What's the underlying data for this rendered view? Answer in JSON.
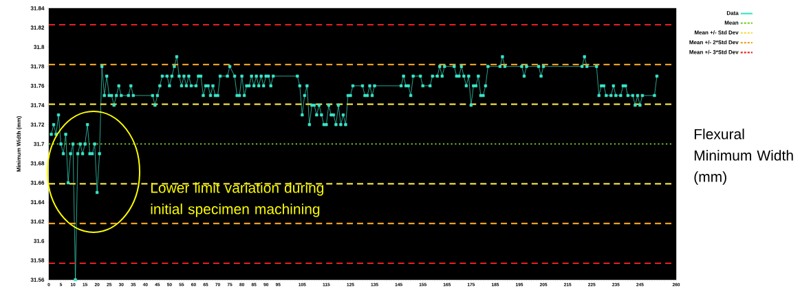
{
  "chart_data": {
    "type": "line",
    "ylabel": "Minimum Width (mm)",
    "annotations": [
      "Lower limit variation during initial specimen machining",
      "Flexural Minimum Width (mm)"
    ],
    "xlim": [
      0,
      260
    ],
    "xticks": [
      0,
      5,
      10,
      15,
      20,
      25,
      30,
      35,
      40,
      45,
      50,
      55,
      60,
      65,
      70,
      75,
      80,
      85,
      90,
      95,
      {
        "value": 100,
        "label": null
      },
      105,
      {
        "value": 110,
        "label": null
      },
      115,
      {
        "value": 120,
        "label": null
      },
      125,
      {
        "value": 130,
        "label": null
      },
      135,
      {
        "value": 140,
        "label": null
      },
      145,
      {
        "value": 150,
        "label": null
      },
      155,
      {
        "value": 160,
        "label": null
      },
      165,
      {
        "value": 170,
        "label": null
      },
      175,
      {
        "value": 180,
        "label": null
      },
      185,
      {
        "value": 190,
        "label": null
      },
      195,
      {
        "value": 200,
        "label": null
      },
      205,
      {
        "value": 210,
        "label": null
      },
      215,
      {
        "value": 220,
        "label": null
      },
      225,
      {
        "value": 230,
        "label": null
      },
      235,
      {
        "value": 240,
        "label": null
      },
      245,
      {
        "value": 250,
        "label": null
      },
      {
        "value": 255,
        "label": null
      },
      260
    ],
    "ylim": [
      31.56,
      31.84
    ],
    "yticks": [
      31.56,
      31.58,
      31.6,
      31.62,
      31.64,
      31.66,
      31.68,
      31.7,
      31.72,
      31.74,
      31.76,
      31.78,
      31.8,
      31.82,
      31.84
    ],
    "legend": "top right",
    "grid": false,
    "series": [
      {
        "name": "Data",
        "color": "#38e6c8",
        "marker": "square",
        "line_style": "solid",
        "x": [
          1,
          2,
          3,
          4,
          5,
          6,
          7,
          8,
          9,
          10,
          11,
          12,
          13,
          14,
          15,
          16,
          17,
          18,
          19,
          20,
          21,
          22,
          23,
          24,
          25,
          26,
          27,
          28,
          29,
          30,
          33,
          34,
          35,
          43,
          44,
          45,
          46,
          47,
          49,
          50,
          51,
          52,
          53,
          54,
          55,
          56,
          57,
          58,
          59,
          61,
          62,
          63,
          64,
          65,
          66,
          67,
          68,
          69,
          70,
          71,
          74,
          75,
          77,
          78,
          79,
          80,
          81,
          82,
          83,
          84,
          85,
          86,
          87,
          88,
          89,
          90,
          91,
          92,
          93,
          103,
          104,
          105,
          106,
          107,
          108,
          109,
          110,
          111,
          112,
          113,
          114,
          115,
          116,
          117,
          118,
          119,
          120,
          121,
          122,
          123,
          124,
          125,
          126,
          130,
          131,
          132,
          133,
          134,
          135,
          146,
          147,
          148,
          149,
          150,
          151,
          154,
          155,
          158,
          159,
          161,
          162,
          163,
          164,
          168,
          169,
          170,
          171,
          172,
          173,
          174,
          175,
          176,
          177,
          178,
          179,
          180,
          181,
          182,
          187,
          188,
          189,
          196,
          197,
          198,
          203,
          204,
          205,
          221,
          222,
          223,
          227,
          228,
          229,
          230,
          231,
          233,
          234,
          235,
          237,
          238,
          239,
          240,
          242,
          243,
          244,
          245,
          246,
          251,
          252
        ],
        "values": [
          31.71,
          31.72,
          31.71,
          31.73,
          31.7,
          31.69,
          31.71,
          31.66,
          31.69,
          31.7,
          31.56,
          31.69,
          31.7,
          31.69,
          31.7,
          31.72,
          31.69,
          31.69,
          31.7,
          31.65,
          31.69,
          31.78,
          31.75,
          31.77,
          31.75,
          31.75,
          31.74,
          31.75,
          31.76,
          31.75,
          31.75,
          31.76,
          31.75,
          31.75,
          31.74,
          31.75,
          31.76,
          31.77,
          31.77,
          31.76,
          31.77,
          31.78,
          31.79,
          31.77,
          31.76,
          31.77,
          31.76,
          31.77,
          31.76,
          31.76,
          31.77,
          31.77,
          31.75,
          31.76,
          31.76,
          31.75,
          31.76,
          31.75,
          31.75,
          31.77,
          31.77,
          31.78,
          31.77,
          31.75,
          31.75,
          31.77,
          31.75,
          31.76,
          31.76,
          31.77,
          31.76,
          31.77,
          31.76,
          31.77,
          31.76,
          31.77,
          31.77,
          31.76,
          31.77,
          31.77,
          31.76,
          31.73,
          31.75,
          31.76,
          31.72,
          31.74,
          31.74,
          31.73,
          31.74,
          31.73,
          31.72,
          31.72,
          31.74,
          31.73,
          31.73,
          31.72,
          31.74,
          31.72,
          31.73,
          31.72,
          31.75,
          31.75,
          31.76,
          31.76,
          31.75,
          31.75,
          31.76,
          31.75,
          31.76,
          31.76,
          31.77,
          31.76,
          31.76,
          31.75,
          31.77,
          31.77,
          31.76,
          31.76,
          31.77,
          31.77,
          31.78,
          31.77,
          31.78,
          31.78,
          31.77,
          31.77,
          31.78,
          31.77,
          31.76,
          31.77,
          31.74,
          31.76,
          31.76,
          31.77,
          31.75,
          31.75,
          31.76,
          31.78,
          31.78,
          31.79,
          31.78,
          31.78,
          31.77,
          31.78,
          31.78,
          31.77,
          31.78,
          31.78,
          31.79,
          31.78,
          31.78,
          31.75,
          31.76,
          31.76,
          31.75,
          31.75,
          31.76,
          31.75,
          31.75,
          31.76,
          31.76,
          31.75,
          31.75,
          31.74,
          31.75,
          31.74,
          31.75,
          31.75,
          31.77
        ]
      },
      {
        "name": "Mean",
        "color": "#7acc29",
        "marker": "none",
        "line_style": "dotted",
        "x": [
          0,
          258
        ],
        "values": [
          31.7,
          31.7
        ]
      },
      {
        "name": "Mean +/- Std Dev",
        "color": "#f0e040",
        "marker": "none",
        "line_style": "dashed",
        "x": [
          0,
          258
        ],
        "values": [
          31.741,
          31.741
        ]
      },
      {
        "color": "#f0e040",
        "marker": "none",
        "line_style": "dashed",
        "x": [
          0,
          258
        ],
        "values": [
          31.659,
          31.659
        ]
      },
      {
        "name": "Mean +/- 2*Std Dev",
        "color": "#f0a020",
        "marker": "none",
        "line_style": "dashed",
        "x": [
          0,
          258
        ],
        "values": [
          31.782,
          31.782
        ]
      },
      {
        "color": "#f0a020",
        "marker": "none",
        "line_style": "dashed",
        "x": [
          0,
          258
        ],
        "values": [
          31.618,
          31.618
        ]
      },
      {
        "name": "Mean +/- 3*Std Dev",
        "color": "#e82020",
        "marker": "none",
        "line_style": "dashed",
        "x": [
          0,
          258
        ],
        "values": [
          31.823,
          31.823
        ]
      },
      {
        "color": "#e82020",
        "marker": "none",
        "line_style": "dashed",
        "x": [
          0,
          258
        ],
        "values": [
          31.577,
          31.577
        ]
      }
    ]
  }
}
